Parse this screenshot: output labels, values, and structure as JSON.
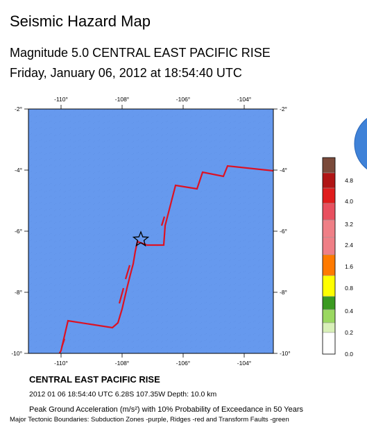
{
  "header": {
    "title": "Seismic Hazard Map",
    "event_line": "Magnitude 5.0 CENTRAL EAST PACIFIC RISE",
    "date_line": "Friday, January 06, 2012 at 18:54:40 UTC"
  },
  "map": {
    "lon_ticks": [
      "-110°",
      "-108°",
      "-106°",
      "-104°"
    ],
    "lat_ticks": [
      "-2°",
      "-4°",
      "-6°",
      "-8°",
      "-10°"
    ],
    "epicenter_marker": "star-icon",
    "ocean_color": "#6699ee",
    "ridge_color": "#dd1122",
    "globe_color": "#3f82d8"
  },
  "legend": {
    "labels": [
      "4.8",
      "4.0",
      "3.2",
      "2.4",
      "1.6",
      "0.8",
      "0.4",
      "0.2",
      "0.0"
    ],
    "colors": [
      "#7a4a3a",
      "#b01515",
      "#e01d1d",
      "#e8505f",
      "#ef7f86",
      "#ff7a00",
      "#ffcc00",
      "#ffff00",
      "#3a9a20",
      "#9ad860",
      "#d8f0b8",
      "#ffffff"
    ]
  },
  "footer": {
    "region": "CENTRAL EAST PACIFIC RISE",
    "details": "2012 01 06 18:54:40 UTC 6.28S 107.35W Depth: 10.0 km",
    "pga": "Peak Ground Acceleration (m/s²) with 10% Probability of Exceedance in 50 Years",
    "boundaries": "Major Tectonic Boundaries: Subduction Zones -purple, Ridges -red and Transform Faults -green"
  }
}
